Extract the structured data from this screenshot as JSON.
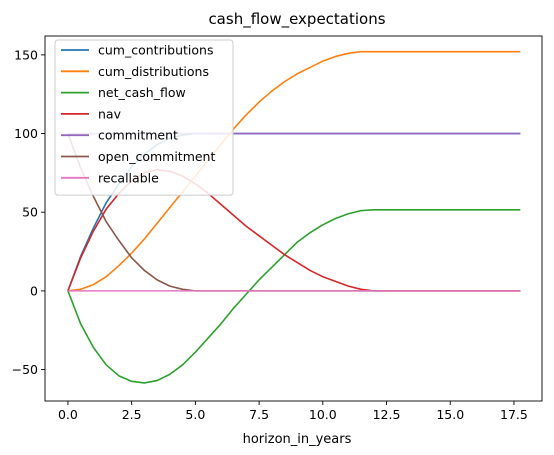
{
  "chart_data": {
    "type": "line",
    "title": "cash_flow_expectations",
    "xlabel": "horizon_in_years",
    "ylabel": "",
    "xlim": [
      -0.9,
      18.6
    ],
    "ylim": [
      -70,
      162
    ],
    "xticks": [
      0.0,
      2.5,
      5.0,
      7.5,
      10.0,
      12.5,
      15.0,
      17.5
    ],
    "xtick_labels": [
      "0.0",
      "2.5",
      "5.0",
      "7.5",
      "10.0",
      "12.5",
      "15.0",
      "17.5"
    ],
    "yticks": [
      -50,
      0,
      50,
      100,
      150
    ],
    "ytick_labels": [
      "−50",
      "0",
      "50",
      "100",
      "150"
    ],
    "grid": false,
    "legend_position": "upper-left",
    "series": [
      {
        "name": "cum_contributions",
        "color": "#1f77b4",
        "x": [
          0,
          0.5,
          1,
          1.5,
          2,
          2.5,
          3,
          3.5,
          4,
          4.5,
          5,
          6,
          8,
          10,
          12,
          14,
          16,
          17.75
        ],
        "y": [
          0,
          22,
          40,
          56,
          68,
          79,
          87,
          93,
          97,
          99,
          100,
          100,
          100,
          100,
          100,
          100,
          100,
          100
        ]
      },
      {
        "name": "cum_distributions",
        "color": "#ff7f0e",
        "x": [
          0,
          0.5,
          1,
          1.5,
          2,
          2.5,
          3,
          3.5,
          4,
          4.5,
          5,
          5.5,
          6,
          6.5,
          7,
          7.5,
          8,
          8.5,
          9,
          9.5,
          10,
          10.5,
          11,
          11.5,
          12,
          13,
          14,
          15,
          16,
          17.75
        ],
        "y": [
          0,
          1,
          4,
          9,
          16,
          24,
          33,
          43,
          53,
          63,
          73,
          83,
          93,
          103,
          112,
          120,
          127,
          133,
          138,
          142,
          146,
          149,
          151,
          152,
          152,
          152,
          152,
          152,
          152,
          152
        ]
      },
      {
        "name": "net_cash_flow",
        "color": "#2ca02c",
        "x": [
          0,
          0.5,
          1,
          1.5,
          2,
          2.5,
          3,
          3.5,
          4,
          4.5,
          5,
          5.5,
          6,
          6.5,
          7,
          7.5,
          8,
          8.5,
          9,
          9.5,
          10,
          10.5,
          11,
          11.5,
          12,
          13,
          14,
          15,
          16,
          17.75
        ],
        "y": [
          0,
          -21,
          -36,
          -47,
          -54,
          -57.5,
          -58.5,
          -57,
          -53,
          -47,
          -39,
          -30,
          -21,
          -11,
          -2,
          7,
          15,
          23,
          31,
          37,
          42,
          46,
          49,
          51,
          51.5,
          51.5,
          51.5,
          51.5,
          51.5,
          51.5
        ]
      },
      {
        "name": "nav",
        "color": "#d62728",
        "x": [
          0,
          0.5,
          1,
          1.5,
          2,
          2.5,
          3,
          3.5,
          4,
          4.5,
          5,
          5.5,
          6,
          6.5,
          7,
          7.5,
          8,
          8.5,
          9,
          9.5,
          10,
          10.5,
          11,
          11.5,
          12,
          13,
          14,
          15,
          16,
          17.75
        ],
        "y": [
          0,
          21,
          38,
          52,
          62,
          70,
          75,
          77,
          76,
          73,
          68,
          62,
          55,
          48,
          41,
          35,
          29,
          23,
          18,
          13,
          9,
          6,
          3,
          1,
          0,
          0,
          0,
          0,
          0,
          0
        ]
      },
      {
        "name": "commitment",
        "color": "#9467bd",
        "x": [
          0,
          4.5,
          5,
          6,
          8,
          10,
          12,
          14,
          16,
          17.75
        ],
        "y": [
          100,
          100,
          100,
          100,
          100,
          100,
          100,
          100,
          100,
          100
        ]
      },
      {
        "name": "open_commitment",
        "color": "#8c564b",
        "x": [
          0,
          0.5,
          1,
          1.5,
          2,
          2.5,
          3,
          3.5,
          4,
          4.5,
          5,
          6,
          8,
          10,
          12,
          14,
          16,
          17.75
        ],
        "y": [
          100,
          78,
          60,
          44,
          32,
          21,
          13,
          7,
          3,
          1,
          0,
          0,
          0,
          0,
          0,
          0,
          0,
          0
        ]
      },
      {
        "name": "recallable",
        "color": "#e377c2",
        "x": [
          0,
          5,
          10,
          15,
          17.75
        ],
        "y": [
          0,
          0,
          0,
          0,
          0
        ]
      }
    ]
  }
}
